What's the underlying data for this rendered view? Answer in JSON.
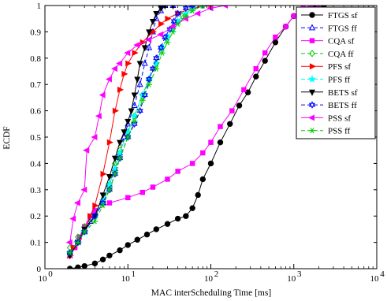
{
  "chart_data": {
    "type": "line",
    "xlabel": "MAC interScheduling Time [ms]",
    "ylabel": "ECDF",
    "xscale": "log",
    "xlim": [
      1,
      10000
    ],
    "ylim": [
      0,
      1
    ],
    "xticks": [
      1,
      10,
      100,
      1000,
      10000
    ],
    "xtick_labels": [
      {
        "base": "10",
        "exp": "0"
      },
      {
        "base": "10",
        "exp": "1"
      },
      {
        "base": "10",
        "exp": "2"
      },
      {
        "base": "10",
        "exp": "3"
      },
      {
        "base": "10",
        "exp": "4"
      }
    ],
    "yticks": [
      0,
      0.1,
      0.2,
      0.3,
      0.4,
      0.5,
      0.6,
      0.7,
      0.8,
      0.9,
      1
    ],
    "ytick_labels": [
      "0",
      "0.1",
      "0.2",
      "0.3",
      "0.4",
      "0.5",
      "0.6",
      "0.7",
      "0.8",
      "0.9",
      "1"
    ],
    "grid": false,
    "legend_position": "top-right",
    "series": [
      {
        "name": "FTGS sf",
        "color": "#000000",
        "dash": "solid",
        "marker": "circle",
        "filled": true,
        "points": [
          [
            2,
            0
          ],
          [
            2.5,
            0.005
          ],
          [
            3,
            0.01
          ],
          [
            4,
            0.02
          ],
          [
            5,
            0.035
          ],
          [
            6,
            0.05
          ],
          [
            8,
            0.07
          ],
          [
            10,
            0.09
          ],
          [
            13,
            0.11
          ],
          [
            17,
            0.13
          ],
          [
            22,
            0.15
          ],
          [
            30,
            0.17
          ],
          [
            40,
            0.19
          ],
          [
            50,
            0.2
          ],
          [
            60,
            0.23
          ],
          [
            70,
            0.28
          ],
          [
            80,
            0.34
          ],
          [
            100,
            0.4
          ],
          [
            130,
            0.48
          ],
          [
            170,
            0.55
          ],
          [
            220,
            0.62
          ],
          [
            280,
            0.67
          ],
          [
            350,
            0.73
          ],
          [
            450,
            0.79
          ],
          [
            600,
            0.86
          ],
          [
            800,
            0.92
          ],
          [
            1000,
            0.96
          ],
          [
            1300,
            0.99
          ],
          [
            1800,
            1
          ],
          [
            2300,
            1
          ]
        ]
      },
      {
        "name": "FTGS ff",
        "color": "#0000ff",
        "dash": "dash",
        "marker": "triangle",
        "filled": false,
        "points": [
          [
            2,
            0.05
          ],
          [
            2.5,
            0.1
          ],
          [
            3,
            0.14
          ],
          [
            3.5,
            0.18
          ],
          [
            4,
            0.22
          ],
          [
            5,
            0.26
          ],
          [
            6,
            0.32
          ],
          [
            7,
            0.38
          ],
          [
            8,
            0.44
          ],
          [
            9,
            0.5
          ],
          [
            10,
            0.55
          ],
          [
            12,
            0.62
          ],
          [
            14,
            0.7
          ],
          [
            16,
            0.78
          ],
          [
            18,
            0.84
          ],
          [
            20,
            0.9
          ],
          [
            22,
            0.95
          ],
          [
            25,
            0.98
          ],
          [
            28,
            1
          ],
          [
            35,
            1
          ]
        ]
      },
      {
        "name": "CQA sf",
        "color": "#ff00ff",
        "dash": "solid",
        "marker": "square",
        "filled": true,
        "points": [
          [
            2,
            0.05
          ],
          [
            2.3,
            0.08
          ],
          [
            2.6,
            0.12
          ],
          [
            3,
            0.16
          ],
          [
            3.5,
            0.2
          ],
          [
            4,
            0.22
          ],
          [
            6,
            0.25
          ],
          [
            10,
            0.27
          ],
          [
            15,
            0.29
          ],
          [
            20,
            0.31
          ],
          [
            30,
            0.34
          ],
          [
            40,
            0.37
          ],
          [
            60,
            0.4
          ],
          [
            80,
            0.44
          ],
          [
            100,
            0.48
          ],
          [
            130,
            0.54
          ],
          [
            180,
            0.6
          ],
          [
            250,
            0.68
          ],
          [
            350,
            0.76
          ],
          [
            450,
            0.82
          ],
          [
            600,
            0.88
          ],
          [
            800,
            0.92
          ],
          [
            1000,
            0.96
          ],
          [
            1300,
            0.99
          ],
          [
            1600,
            1
          ],
          [
            2000,
            1
          ]
        ]
      },
      {
        "name": "CQA ff",
        "color": "#00cc00",
        "dash": "dash",
        "marker": "diamond",
        "filled": false,
        "points": [
          [
            2,
            0.08
          ],
          [
            2.5,
            0.12
          ],
          [
            3,
            0.16
          ],
          [
            4,
            0.2
          ],
          [
            5,
            0.25
          ],
          [
            6,
            0.32
          ],
          [
            7,
            0.4
          ],
          [
            8,
            0.45
          ],
          [
            10,
            0.52
          ],
          [
            12,
            0.58
          ],
          [
            15,
            0.66
          ],
          [
            18,
            0.72
          ],
          [
            22,
            0.78
          ],
          [
            26,
            0.84
          ],
          [
            30,
            0.88
          ],
          [
            35,
            0.92
          ],
          [
            45,
            0.96
          ],
          [
            60,
            0.99
          ],
          [
            80,
            1
          ]
        ]
      },
      {
        "name": "PFS sf",
        "color": "#ff0000",
        "dash": "solid",
        "marker": "triangle-right",
        "filled": true,
        "points": [
          [
            2,
            0.05
          ],
          [
            2.2,
            0.08
          ],
          [
            2.5,
            0.1
          ],
          [
            3,
            0.14
          ],
          [
            3.5,
            0.2
          ],
          [
            4,
            0.24
          ],
          [
            5,
            0.36
          ],
          [
            6,
            0.48
          ],
          [
            7,
            0.6
          ],
          [
            8,
            0.68
          ],
          [
            9,
            0.74
          ],
          [
            10,
            0.78
          ],
          [
            12,
            0.82
          ],
          [
            15,
            0.86
          ],
          [
            20,
            0.9
          ],
          [
            25,
            0.93
          ],
          [
            30,
            0.95
          ],
          [
            40,
            0.97
          ],
          [
            60,
            0.99
          ],
          [
            100,
            1
          ]
        ]
      },
      {
        "name": "PFS ff",
        "color": "#00ffff",
        "dash": "dash",
        "marker": "star",
        "filled": true,
        "points": [
          [
            2,
            0.06
          ],
          [
            2.5,
            0.1
          ],
          [
            3,
            0.14
          ],
          [
            4,
            0.2
          ],
          [
            5,
            0.26
          ],
          [
            6,
            0.32
          ],
          [
            7,
            0.38
          ],
          [
            8,
            0.44
          ],
          [
            10,
            0.52
          ],
          [
            12,
            0.58
          ],
          [
            15,
            0.66
          ],
          [
            18,
            0.72
          ],
          [
            22,
            0.78
          ],
          [
            26,
            0.84
          ],
          [
            30,
            0.88
          ],
          [
            35,
            0.91
          ],
          [
            40,
            0.94
          ],
          [
            50,
            0.97
          ],
          [
            60,
            0.99
          ],
          [
            80,
            1
          ]
        ]
      },
      {
        "name": "BETS sf",
        "color": "#000000",
        "dash": "solid",
        "marker": "triangle-down",
        "filled": true,
        "points": [
          [
            2,
            0.05
          ],
          [
            2.5,
            0.1
          ],
          [
            3,
            0.15
          ],
          [
            4,
            0.2
          ],
          [
            5,
            0.28
          ],
          [
            6,
            0.35
          ],
          [
            7,
            0.42
          ],
          [
            8,
            0.48
          ],
          [
            9,
            0.52
          ],
          [
            10,
            0.56
          ],
          [
            11,
            0.6
          ],
          [
            12,
            0.66
          ],
          [
            13,
            0.72
          ],
          [
            14,
            0.78
          ],
          [
            16,
            0.84
          ],
          [
            18,
            0.9
          ],
          [
            20,
            0.94
          ],
          [
            22,
            0.97
          ],
          [
            25,
            0.99
          ],
          [
            28,
            1
          ],
          [
            35,
            1
          ]
        ]
      },
      {
        "name": "BETS ff",
        "color": "#0000ff",
        "dash": "dash",
        "marker": "hexagram",
        "filled": false,
        "points": [
          [
            2,
            0.06
          ],
          [
            2.5,
            0.1
          ],
          [
            3,
            0.14
          ],
          [
            4,
            0.2
          ],
          [
            5,
            0.25
          ],
          [
            6,
            0.3
          ],
          [
            7,
            0.36
          ],
          [
            8,
            0.42
          ],
          [
            10,
            0.5
          ],
          [
            12,
            0.55
          ],
          [
            14,
            0.6
          ],
          [
            16,
            0.66
          ],
          [
            18,
            0.72
          ],
          [
            20,
            0.76
          ],
          [
            22,
            0.8
          ],
          [
            25,
            0.84
          ],
          [
            28,
            0.88
          ],
          [
            32,
            0.91
          ],
          [
            36,
            0.94
          ],
          [
            40,
            0.97
          ],
          [
            50,
            0.99
          ],
          [
            60,
            1
          ]
        ]
      },
      {
        "name": "PSS sf",
        "color": "#ff00ff",
        "dash": "solid",
        "marker": "triangle-left",
        "filled": true,
        "points": [
          [
            2,
            0.1
          ],
          [
            2.2,
            0.19
          ],
          [
            2.5,
            0.25
          ],
          [
            3,
            0.3
          ],
          [
            3.2,
            0.45
          ],
          [
            4,
            0.5
          ],
          [
            4.5,
            0.58
          ],
          [
            5,
            0.66
          ],
          [
            6,
            0.72
          ],
          [
            7,
            0.76
          ],
          [
            8,
            0.78
          ],
          [
            10,
            0.82
          ],
          [
            13,
            0.85
          ],
          [
            18,
            0.87
          ],
          [
            25,
            0.89
          ],
          [
            35,
            0.92
          ],
          [
            50,
            0.95
          ],
          [
            70,
            0.97
          ],
          [
            100,
            0.99
          ],
          [
            150,
            1
          ]
        ]
      },
      {
        "name": "PSS ff",
        "color": "#00cc00",
        "dash": "dash",
        "marker": "asterisk",
        "filled": true,
        "points": [
          [
            2,
            0.06
          ],
          [
            2.5,
            0.1
          ],
          [
            3,
            0.14
          ],
          [
            4,
            0.18
          ],
          [
            5,
            0.24
          ],
          [
            6,
            0.3
          ],
          [
            7,
            0.36
          ],
          [
            8,
            0.42
          ],
          [
            10,
            0.5
          ],
          [
            12,
            0.56
          ],
          [
            15,
            0.64
          ],
          [
            18,
            0.7
          ],
          [
            22,
            0.76
          ],
          [
            26,
            0.82
          ],
          [
            30,
            0.86
          ],
          [
            35,
            0.9
          ],
          [
            40,
            0.93
          ],
          [
            50,
            0.96
          ],
          [
            60,
            0.98
          ],
          [
            80,
            1
          ]
        ]
      }
    ]
  }
}
